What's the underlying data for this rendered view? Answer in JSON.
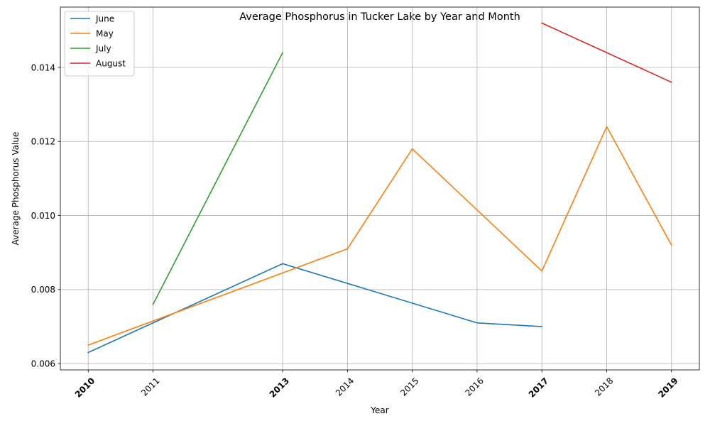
{
  "chart_data": {
    "type": "line",
    "title": "Average Phosphorus in Tucker Lake by Year and Month",
    "xlabel": "Year",
    "ylabel": "Average Phosphorus Value",
    "xlim": [
      2009.57,
      2019.43
    ],
    "ylim": [
      0.00583,
      0.01563
    ],
    "grid": true,
    "legend_position": "top-left",
    "x_ticks": [
      "2010",
      "2011",
      "2013",
      "2014",
      "2015",
      "2016",
      "2017",
      "2018",
      "2019"
    ],
    "x_ticks_bold": [
      "2010",
      "2013",
      "2017",
      "2019"
    ],
    "y_ticks": [
      "0.006",
      "0.008",
      "0.010",
      "0.012",
      "0.014"
    ],
    "series": [
      {
        "name": "June",
        "color": "#1f77b4",
        "x": [
          2010,
          2011,
          2013,
          2016,
          2017
        ],
        "y": [
          0.0063,
          0.0071,
          0.0087,
          0.0071,
          0.007
        ]
      },
      {
        "name": "May",
        "color": "#ff7f0e",
        "x": [
          2010,
          2014,
          2015,
          2017,
          2018,
          2019
        ],
        "y": [
          0.0065,
          0.0091,
          0.0118,
          0.0085,
          0.0124,
          0.0092
        ]
      },
      {
        "name": "July",
        "color": "#2ca02c",
        "x": [
          2011,
          2013
        ],
        "y": [
          0.0076,
          0.0144
        ]
      },
      {
        "name": "August",
        "color": "#d62728",
        "x": [
          2017,
          2019
        ],
        "y": [
          0.0152,
          0.0136
        ]
      }
    ]
  }
}
